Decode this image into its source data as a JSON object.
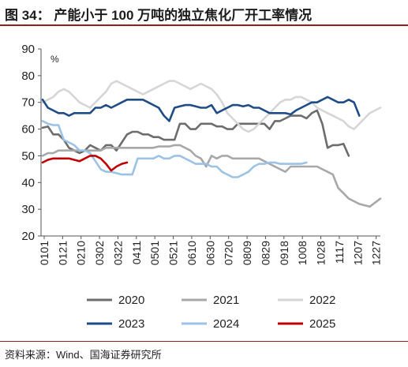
{
  "title": "图 34：  产能小于 100 万吨的独立焦化厂开工率情况",
  "source": "资料来源：Wind、国海证券研究所",
  "chart_data": {
    "type": "line",
    "title": "图 34：  产能小于 100 万吨的独立焦化厂开工率情况",
    "xlabel": "",
    "ylabel": "%",
    "ylim": [
      20,
      90
    ],
    "yticks": [
      20,
      30,
      40,
      50,
      60,
      70,
      80,
      90
    ],
    "x_tick_labels": [
      "0101",
      "0121",
      "0210",
      "0302",
      "0322",
      "0411",
      "0501",
      "0521",
      "0610",
      "0630",
      "0720",
      "0809",
      "0829",
      "0918",
      "1008",
      "1028",
      "1117",
      "1207",
      "1227"
    ],
    "grid": false,
    "legend_position": "bottom",
    "series": [
      {
        "name": "2020",
        "color": "#6d6d6d",
        "values": [
          60.5,
          61,
          58,
          58,
          56,
          53,
          52,
          51,
          52,
          54,
          53,
          52,
          54,
          54,
          52,
          55,
          58,
          59,
          59,
          58,
          58,
          57,
          57,
          56,
          56,
          56,
          62,
          62,
          60,
          60,
          62,
          62,
          62,
          61,
          61,
          60,
          60,
          62,
          62,
          62,
          62,
          62,
          62,
          60,
          63,
          63,
          64,
          65,
          65,
          65,
          64,
          66,
          67,
          62,
          53,
          54,
          54,
          54.5,
          50
        ]
      },
      {
        "name": "2021",
        "color": "#a8a8a8",
        "values": [
          50,
          51,
          51,
          52,
          52,
          52,
          52,
          52,
          52,
          52,
          52,
          52,
          53,
          53,
          53,
          53,
          53,
          53,
          53,
          53,
          53,
          53,
          53.5,
          53.5,
          53.5,
          54,
          54,
          53,
          52,
          50,
          49,
          46,
          50,
          49,
          50,
          50,
          49,
          49,
          49,
          49,
          49,
          49,
          48,
          47,
          46,
          45,
          44,
          46,
          46,
          46,
          46,
          46,
          46,
          45,
          44,
          43,
          38,
          36,
          34,
          33,
          32,
          31.5,
          31,
          32.5,
          34
        ]
      },
      {
        "name": "2022",
        "color": "#d6d6d6",
        "values": [
          70,
          71,
          72,
          74,
          75,
          74,
          72,
          70,
          69,
          68,
          70,
          72,
          74,
          77,
          78,
          77,
          76,
          75,
          74,
          73,
          74,
          75,
          76,
          77,
          78,
          78,
          77,
          76,
          75,
          76,
          77,
          76,
          75,
          73,
          70,
          66,
          64,
          62,
          60,
          59,
          60,
          62,
          64,
          66,
          68,
          70,
          71,
          71,
          72,
          72,
          71,
          70,
          68,
          67,
          66,
          65,
          64,
          63,
          61,
          60,
          62,
          64,
          66,
          67,
          68
        ]
      },
      {
        "name": "2023",
        "color": "#1f4c86",
        "values": [
          71,
          68,
          67,
          66,
          66,
          65,
          66,
          66,
          66,
          66,
          68,
          68,
          69,
          68,
          69,
          70,
          71,
          71,
          71,
          71,
          70,
          69,
          68,
          65,
          63,
          68,
          68.5,
          69,
          69,
          68.5,
          68,
          68,
          69,
          66,
          67,
          68,
          69,
          69,
          68.5,
          69,
          68,
          68,
          67,
          66,
          66,
          66,
          66,
          65.5,
          67,
          68,
          69,
          70,
          70,
          71,
          72,
          71,
          70,
          70,
          71,
          70,
          65
        ]
      },
      {
        "name": "2024",
        "color": "#9cc3e5",
        "values": [
          63,
          62,
          61.5,
          61.5,
          56,
          55,
          54,
          52,
          52,
          51,
          48,
          45,
          44,
          44,
          43.5,
          43,
          43,
          43,
          49,
          49,
          49,
          49,
          50,
          49,
          49,
          50,
          50,
          49,
          48,
          47,
          47,
          47,
          46,
          46,
          44,
          43,
          42,
          42,
          43,
          44,
          46,
          47,
          47,
          47.5,
          47.5,
          47,
          47,
          47,
          47,
          47,
          47.5
        ]
      },
      {
        "name": "2025",
        "color": "#c00000",
        "values": [
          47.5,
          48.5,
          49,
          49,
          49,
          49,
          48.5,
          48,
          49,
          50,
          50,
          49,
          47,
          44.5,
          46,
          47,
          47.5
        ]
      }
    ]
  }
}
